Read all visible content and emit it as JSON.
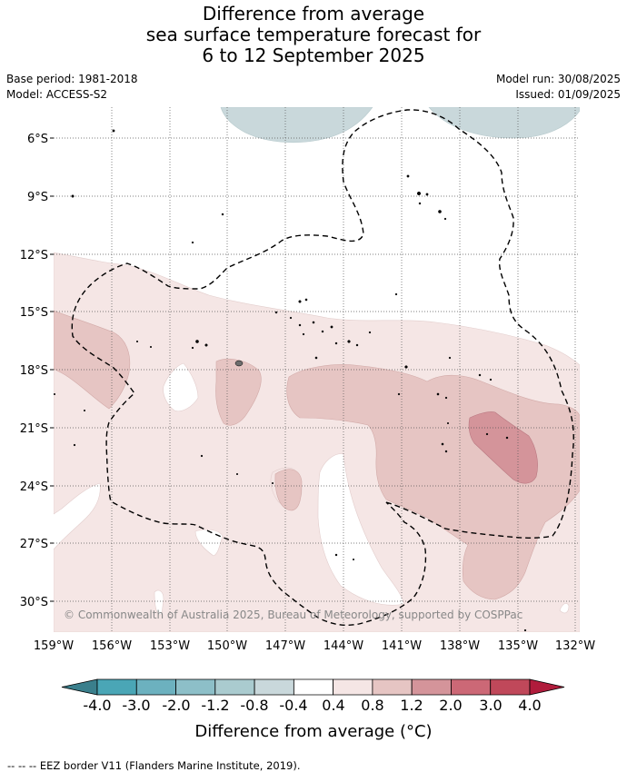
{
  "header": {
    "title_lines": [
      "Difference from average",
      "sea surface temperature forecast for",
      "6 to 12 September 2025"
    ],
    "base_period": "Base period: 1981-2018",
    "model": "Model: ACCESS-S2",
    "model_run": "Model run: 30/08/2025",
    "issued": "Issued: 01/09/2025"
  },
  "map": {
    "lat_labels": [
      "6°S",
      "9°S",
      "12°S",
      "15°S",
      "18°S",
      "21°S",
      "24°S",
      "27°S",
      "30°S"
    ],
    "lon_labels": [
      "159°W",
      "156°W",
      "153°W",
      "150°W",
      "147°W",
      "144°W",
      "141°W",
      "138°W",
      "135°W",
      "132°W"
    ],
    "copyright": "© Commonwealth of Australia 2025, Bureau of Meteorology, supported by COSPPac"
  },
  "legend": {
    "title": "Difference from average (°C)",
    "tick_labels": [
      "-4.0",
      "-3.0",
      "-2.0",
      "-1.2",
      "-0.8",
      "-0.4",
      "0.4",
      "0.8",
      "1.2",
      "2.0",
      "3.0",
      "4.0"
    ],
    "colors": {
      "below_min": "#3a7f8c",
      "bins": [
        "#4aa6b6",
        "#6cb1bf",
        "#8dbfc8",
        "#aacbcf",
        "#c9d8db",
        "#ffffff",
        "#f5e6e5",
        "#e6c5c3",
        "#d4949a",
        "#cc6876",
        "#c0485a"
      ],
      "above_max": "#b01c3c"
    }
  },
  "footer": {
    "eez_note": "--  --  -- EEZ border V11 (Flanders Marine Institute, 2019)."
  }
}
